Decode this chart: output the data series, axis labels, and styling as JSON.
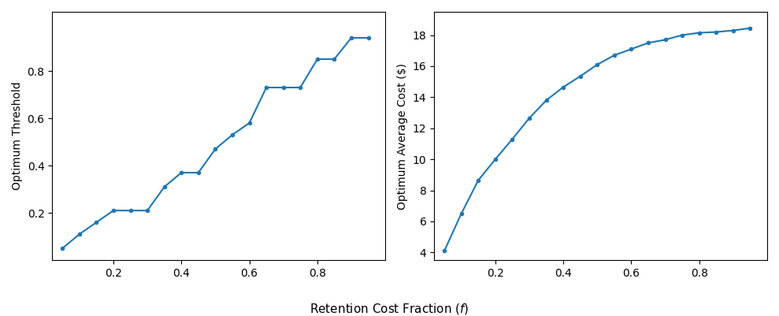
{
  "left_x": [
    0.05,
    0.1,
    0.15,
    0.2,
    0.25,
    0.3,
    0.35,
    0.4,
    0.45,
    0.5,
    0.55,
    0.6,
    0.65,
    0.7,
    0.75,
    0.8,
    0.85,
    0.9,
    0.95
  ],
  "left_y": [
    0.05,
    0.11,
    0.16,
    0.21,
    0.21,
    0.21,
    0.31,
    0.37,
    0.37,
    0.47,
    0.53,
    0.58,
    0.73,
    0.73,
    0.73,
    0.85,
    0.85,
    0.94,
    0.94
  ],
  "right_x": [
    0.05,
    0.1,
    0.15,
    0.2,
    0.25,
    0.3,
    0.35,
    0.4,
    0.45,
    0.5,
    0.55,
    0.6,
    0.65,
    0.7,
    0.75,
    0.8,
    0.85,
    0.9,
    0.95
  ],
  "right_y": [
    4.1,
    6.5,
    8.65,
    10.0,
    11.3,
    12.65,
    13.8,
    14.65,
    15.35,
    16.1,
    16.7,
    17.1,
    17.5,
    17.7,
    18.0,
    18.15,
    18.2,
    18.3,
    18.45
  ],
  "left_ylabel": "Optimum Threshold",
  "right_ylabel": "Optimum Average Cost ($)",
  "xlabel": "Retention Cost Fraction ($f$)",
  "line_color": "#1f77b4",
  "marker": ".",
  "markersize": 6,
  "linewidth": 1.5,
  "left_ylim": [
    0.0,
    1.05
  ],
  "right_ylim": [
    3.5,
    19.5
  ],
  "left_xlim": [
    0.02,
    1.0
  ],
  "right_xlim": [
    0.02,
    1.0
  ],
  "left_yticks": [
    0.2,
    0.4,
    0.6,
    0.8
  ],
  "right_yticks": [
    4,
    6,
    8,
    10,
    12,
    14,
    16,
    18
  ],
  "xticks": [
    0.2,
    0.4,
    0.6,
    0.8
  ]
}
